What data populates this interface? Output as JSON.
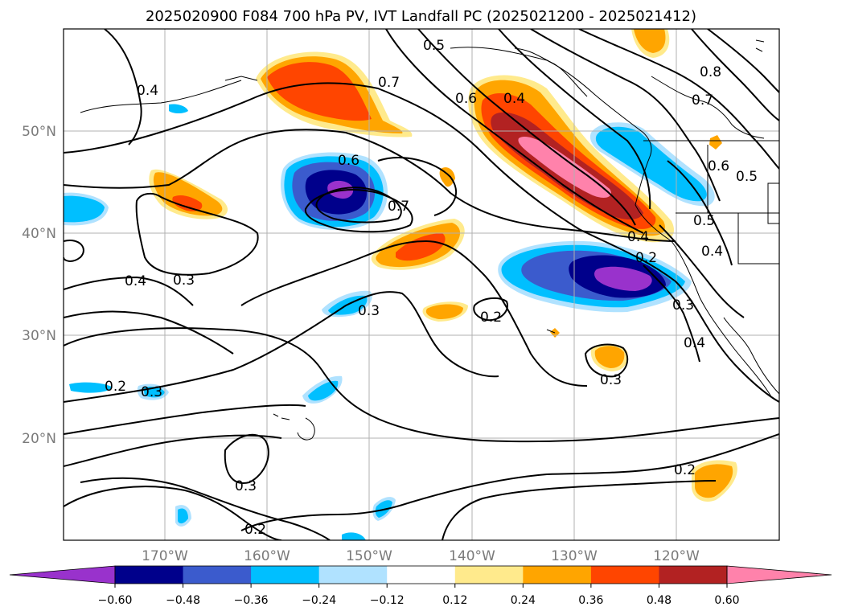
{
  "title": "2025020900 F084 700 hPa PV, IVT Landfall PC (2025021200 - 2025021412)",
  "lat_labels": [
    "50°N",
    "40°N",
    "30°N",
    "20°N"
  ],
  "lon_labels": [
    "170°W",
    "160°W",
    "150°W",
    "140°W",
    "130°W",
    "120°W"
  ],
  "colorbar": {
    "ticks": [
      "−0.60",
      "−0.48",
      "−0.36",
      "−0.24",
      "−0.12",
      "0.12",
      "0.24",
      "0.36",
      "0.48",
      "0.60"
    ],
    "colors": [
      "#9932cc",
      "#00008b",
      "#3b5bcd",
      "#00bfff",
      "#b0e2ff",
      "#ffffff",
      "#ffea8c",
      "#ffa500",
      "#ff4500",
      "#b22222",
      "#ff82ab"
    ]
  },
  "contour_labels": [
    "0.4",
    "0.7",
    "0.5",
    "0.4",
    "0.6",
    "0.8",
    "0.7",
    "0.6",
    "0.5",
    "0.6",
    "0.7",
    "0.5",
    "0.4",
    "0.3",
    "0.4",
    "0.3",
    "0.3",
    "0.2",
    "0.3",
    "0.4",
    "0.3",
    "0.2",
    "0.3",
    "0.2",
    "0.2",
    "0.2",
    "0.4"
  ],
  "colors": {
    "gridline": "#b0b0b0",
    "contour": "#000000",
    "tick_label": "#7a7a7a"
  }
}
